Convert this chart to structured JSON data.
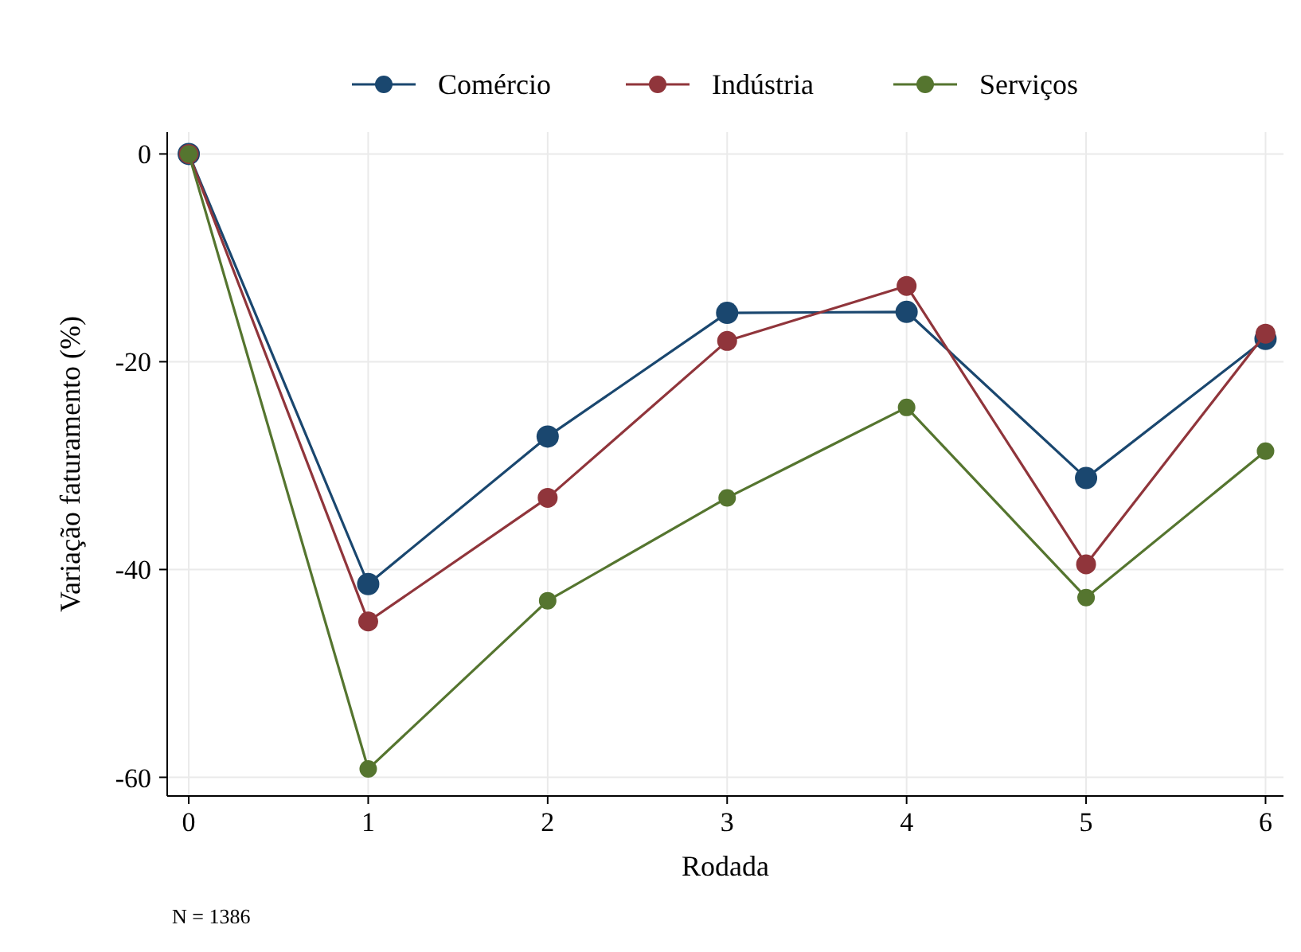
{
  "chart_data": {
    "type": "line",
    "xlabel": "Rodada",
    "ylabel": "Variação faturamento (%)",
    "x": [
      0,
      1,
      2,
      3,
      4,
      5,
      6
    ],
    "series": [
      {
        "name": "Comércio",
        "color": "#1a476f",
        "values": [
          0,
          -41.4,
          -27.2,
          -15.3,
          -15.2,
          -31.2,
          -17.8
        ]
      },
      {
        "name": "Indústria",
        "color": "#90353b",
        "values": [
          0,
          -45,
          -33.1,
          -18,
          -12.7,
          -39.5,
          -17.3
        ]
      },
      {
        "name": "Serviços",
        "color": "#55752f",
        "values": [
          0,
          -59.2,
          -43,
          -33.1,
          -24.4,
          -42.7,
          -28.6
        ]
      }
    ],
    "xlim": [
      -0.12,
      6.1
    ],
    "xticks": [
      0,
      1,
      2,
      3,
      4,
      5,
      6
    ],
    "ylim": [
      -61.8,
      2.1
    ],
    "yticks": [
      0,
      -20,
      -40,
      -60
    ],
    "grid": true,
    "legend": "top",
    "marker": "circle",
    "line_style": "solid",
    "annotations": [
      "N = 1386"
    ]
  }
}
